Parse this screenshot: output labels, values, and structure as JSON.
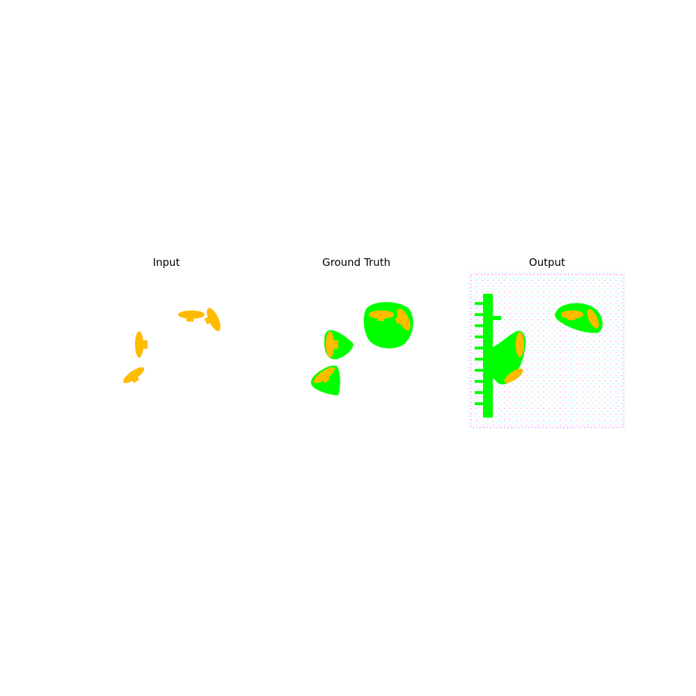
{
  "panels": [
    {
      "id": "input",
      "title": "Input"
    },
    {
      "id": "ground_truth",
      "title": "Ground Truth"
    },
    {
      "id": "output",
      "title": "Output"
    }
  ],
  "colors": {
    "background": "#ffffff",
    "object_fill": "#ffbb00",
    "mask_fill": "#00ff00",
    "mask_edge": "#33dd33",
    "noise_cyan": "#66ffff",
    "noise_magenta": "#ff66ff",
    "noise_yellow": "#ffff66"
  }
}
